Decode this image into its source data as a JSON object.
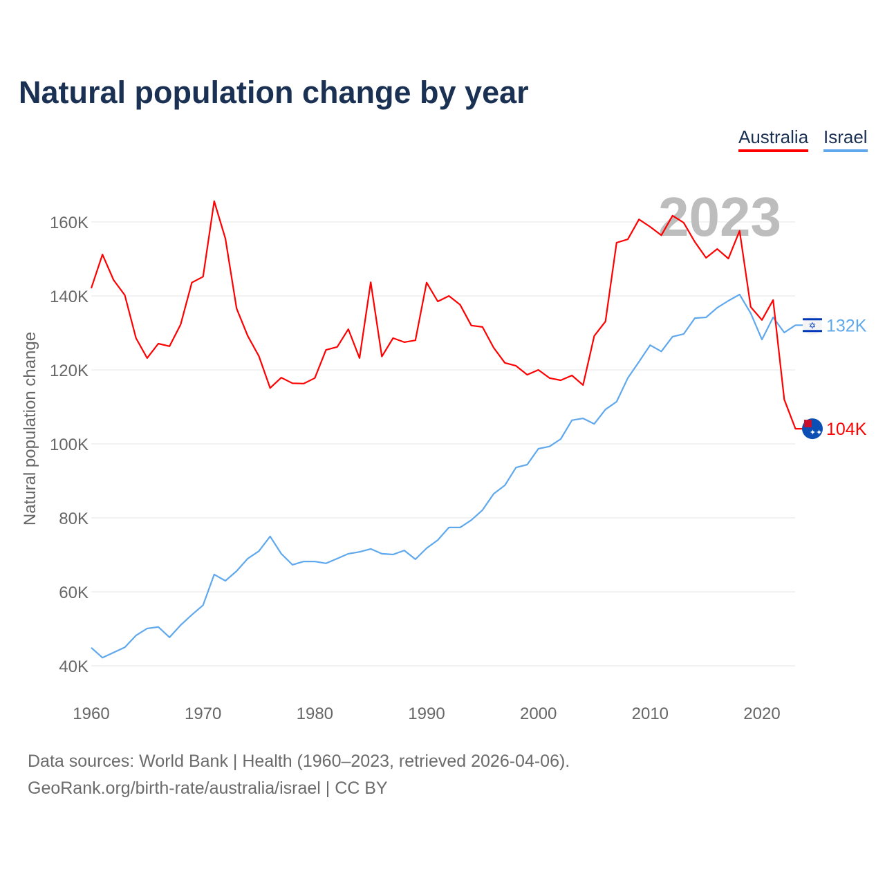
{
  "title": "Natural population change by year",
  "footer": {
    "line1": "Data sources: World Bank | Health (1960–2023, retrieved 2026-04-06).",
    "line2": "GeoRank.org/birth-rate/australia/israel | CC BY"
  },
  "chart_data": {
    "type": "line",
    "title": "Natural population change by year",
    "xlabel": "",
    "ylabel": "Natural population change",
    "year_watermark": "2023",
    "xlim": [
      1960,
      2023
    ],
    "ylim": [
      40000,
      165000
    ],
    "grid": true,
    "legend_placement": "top-right",
    "x_ticks": [
      1960,
      1970,
      1980,
      1990,
      2000,
      2010,
      2020
    ],
    "y_ticks": [
      40000,
      60000,
      80000,
      100000,
      120000,
      140000,
      160000
    ],
    "y_tick_labels": [
      "40K",
      "60K",
      "80K",
      "100K",
      "120K",
      "140K",
      "160K"
    ],
    "x": [
      1960,
      1961,
      1962,
      1963,
      1964,
      1965,
      1966,
      1967,
      1968,
      1969,
      1970,
      1971,
      1972,
      1973,
      1974,
      1975,
      1976,
      1977,
      1978,
      1979,
      1980,
      1981,
      1982,
      1983,
      1984,
      1985,
      1986,
      1987,
      1988,
      1989,
      1990,
      1991,
      1992,
      1993,
      1994,
      1995,
      1996,
      1997,
      1998,
      1999,
      2000,
      2001,
      2002,
      2003,
      2004,
      2005,
      2006,
      2007,
      2008,
      2009,
      2010,
      2011,
      2012,
      2013,
      2014,
      2015,
      2016,
      2017,
      2018,
      2019,
      2020,
      2021,
      2022,
      2023
    ],
    "series": [
      {
        "name": "Australia",
        "color": "#ff0000",
        "end_label": "104K",
        "flag": "australia-flag",
        "values": [
          142100,
          151200,
          144300,
          140200,
          128600,
          123200,
          127100,
          126400,
          132300,
          143600,
          145200,
          165600,
          155500,
          136600,
          129200,
          123700,
          115100,
          117900,
          116400,
          116300,
          117800,
          125400,
          126200,
          131000,
          123200,
          143700,
          123600,
          128600,
          127500,
          128000,
          143600,
          138500,
          140000,
          137600,
          132000,
          131600,
          126000,
          121900,
          121100,
          118700,
          120000,
          117800,
          117200,
          118500,
          115900,
          129200,
          133100,
          154400,
          155300,
          160700,
          158700,
          156400,
          161700,
          159800,
          154600,
          150300,
          152700,
          150100,
          157600,
          137000,
          133500,
          138900,
          112000,
          104100
        ]
      },
      {
        "name": "Israel",
        "color": "#5fa8ee",
        "end_label": "132K",
        "flag": "israel-flag",
        "values": [
          44900,
          42200,
          43600,
          45000,
          48200,
          50100,
          50500,
          47700,
          51000,
          53800,
          56400,
          64700,
          63000,
          65600,
          69000,
          71000,
          75000,
          70300,
          67300,
          68200,
          68200,
          67700,
          69000,
          70300,
          70800,
          71600,
          70300,
          70100,
          71200,
          68800,
          71800,
          74000,
          77400,
          77400,
          79400,
          82100,
          86500,
          88800,
          93600,
          94400,
          98700,
          99300,
          101300,
          106400,
          106900,
          105400,
          109300,
          111400,
          117800,
          122200,
          126700,
          125000,
          129000,
          129700,
          134000,
          134200,
          136800,
          138700,
          140400,
          135300,
          128200,
          134200,
          130100,
          132100
        ]
      }
    ]
  }
}
